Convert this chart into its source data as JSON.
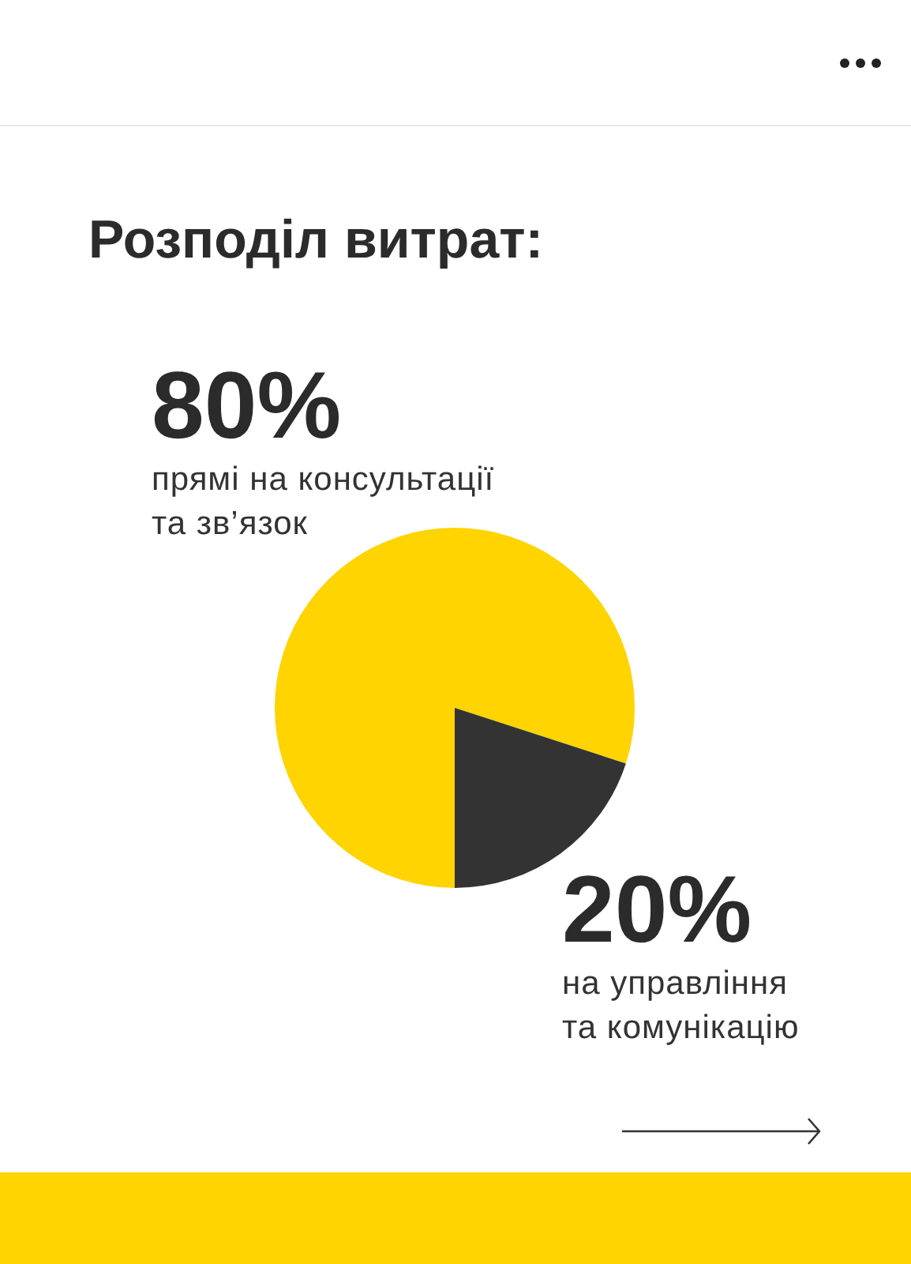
{
  "chart_data": {
    "type": "pie",
    "title": "Розподіл витрат:",
    "categories": [
      "прямі на консультації та зв’язок",
      "на управління та комунікацію"
    ],
    "values": [
      80,
      20
    ],
    "colors": [
      "#ffd400",
      "#333333"
    ],
    "value_labels": [
      "80%",
      "20%"
    ]
  }
}
